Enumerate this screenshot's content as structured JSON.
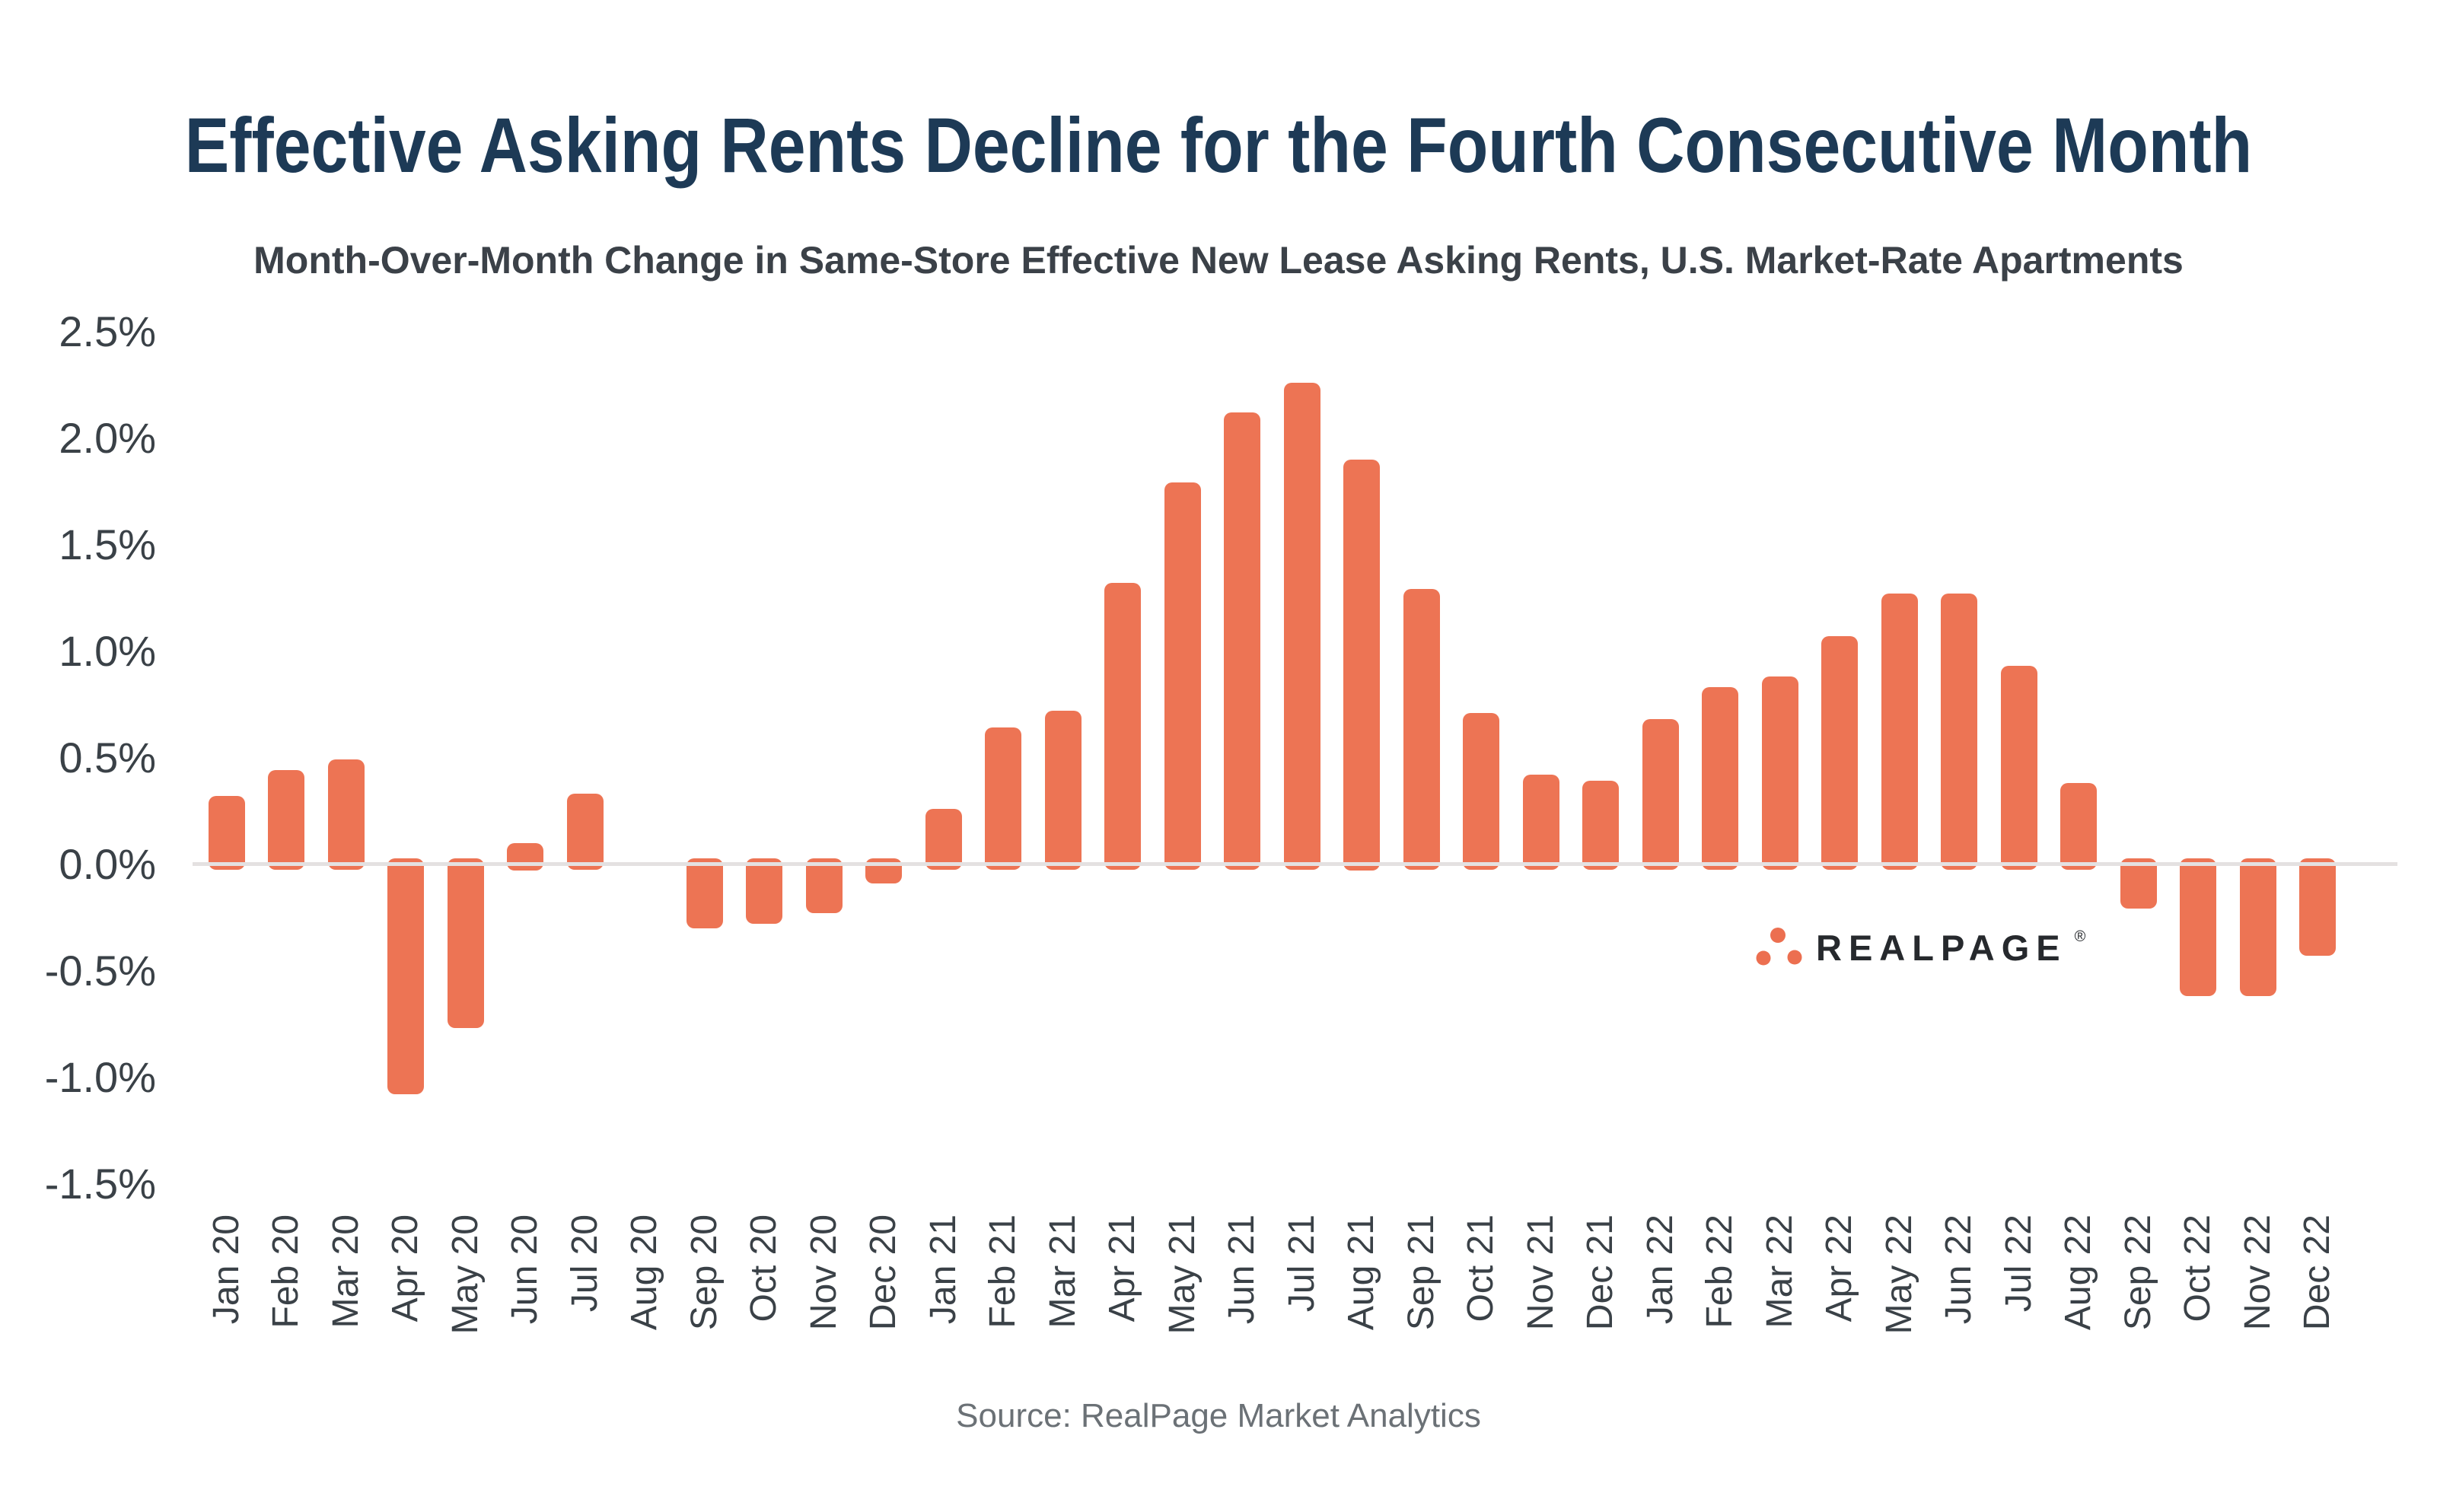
{
  "chart_data": {
    "type": "bar",
    "title": "Effective Asking Rents Decline for the Fourth Consecutive Month",
    "subtitle": "Month-Over-Month Change in Same-Store Effective New Lease Asking Rents, U.S. Market-Rate Apartments",
    "source": "Source: RealPage Market Analytics",
    "categories": [
      "Jan 20",
      "Feb 20",
      "Mar 20",
      "Apr 20",
      "May 20",
      "Jun 20",
      "Jul 20",
      "Aug 20",
      "Sep 20",
      "Oct 20",
      "Nov 20",
      "Dec 20",
      "Jan 21",
      "Feb 21",
      "Mar 21",
      "Apr 21",
      "May 21",
      "Jun 21",
      "Jul 21",
      "Aug 21",
      "Sep 21",
      "Oct 21",
      "Nov 21",
      "Dec 21",
      "Jan 22",
      "Feb 22",
      "Mar 22",
      "Apr 22",
      "May 22",
      "Jun 22",
      "Jul 22",
      "Aug 22",
      "Sep 22",
      "Oct 22",
      "Nov 22",
      "Dec 22"
    ],
    "values": [
      0.32,
      0.44,
      0.49,
      -1.08,
      -0.77,
      0.1,
      0.33,
      0.0,
      -0.3,
      -0.28,
      -0.23,
      -0.09,
      0.26,
      0.64,
      0.72,
      1.32,
      1.79,
      2.12,
      2.26,
      1.9,
      1.29,
      0.71,
      0.42,
      0.39,
      0.68,
      0.83,
      0.88,
      1.07,
      1.27,
      1.27,
      0.93,
      0.38,
      -0.21,
      -0.62,
      -0.62,
      -0.43
    ],
    "value_unit": "percent",
    "xlabel": "",
    "ylabel": "",
    "ylim": [
      -1.5,
      2.5
    ],
    "y_ticks": [
      "2.5%",
      "2.0%",
      "1.5%",
      "1.0%",
      "0.5%",
      "0.0%",
      "-0.5%",
      "-1.0%",
      "-1.5%"
    ],
    "grid": false,
    "legend": false,
    "bar_color": "#ed7454",
    "zero_line_color": "#e4e1e1"
  },
  "branding": {
    "logo_text": "REALPAGE",
    "registered": "®",
    "logo_mark": "three-dots-triangle",
    "dot_color": "#ec6f50"
  }
}
